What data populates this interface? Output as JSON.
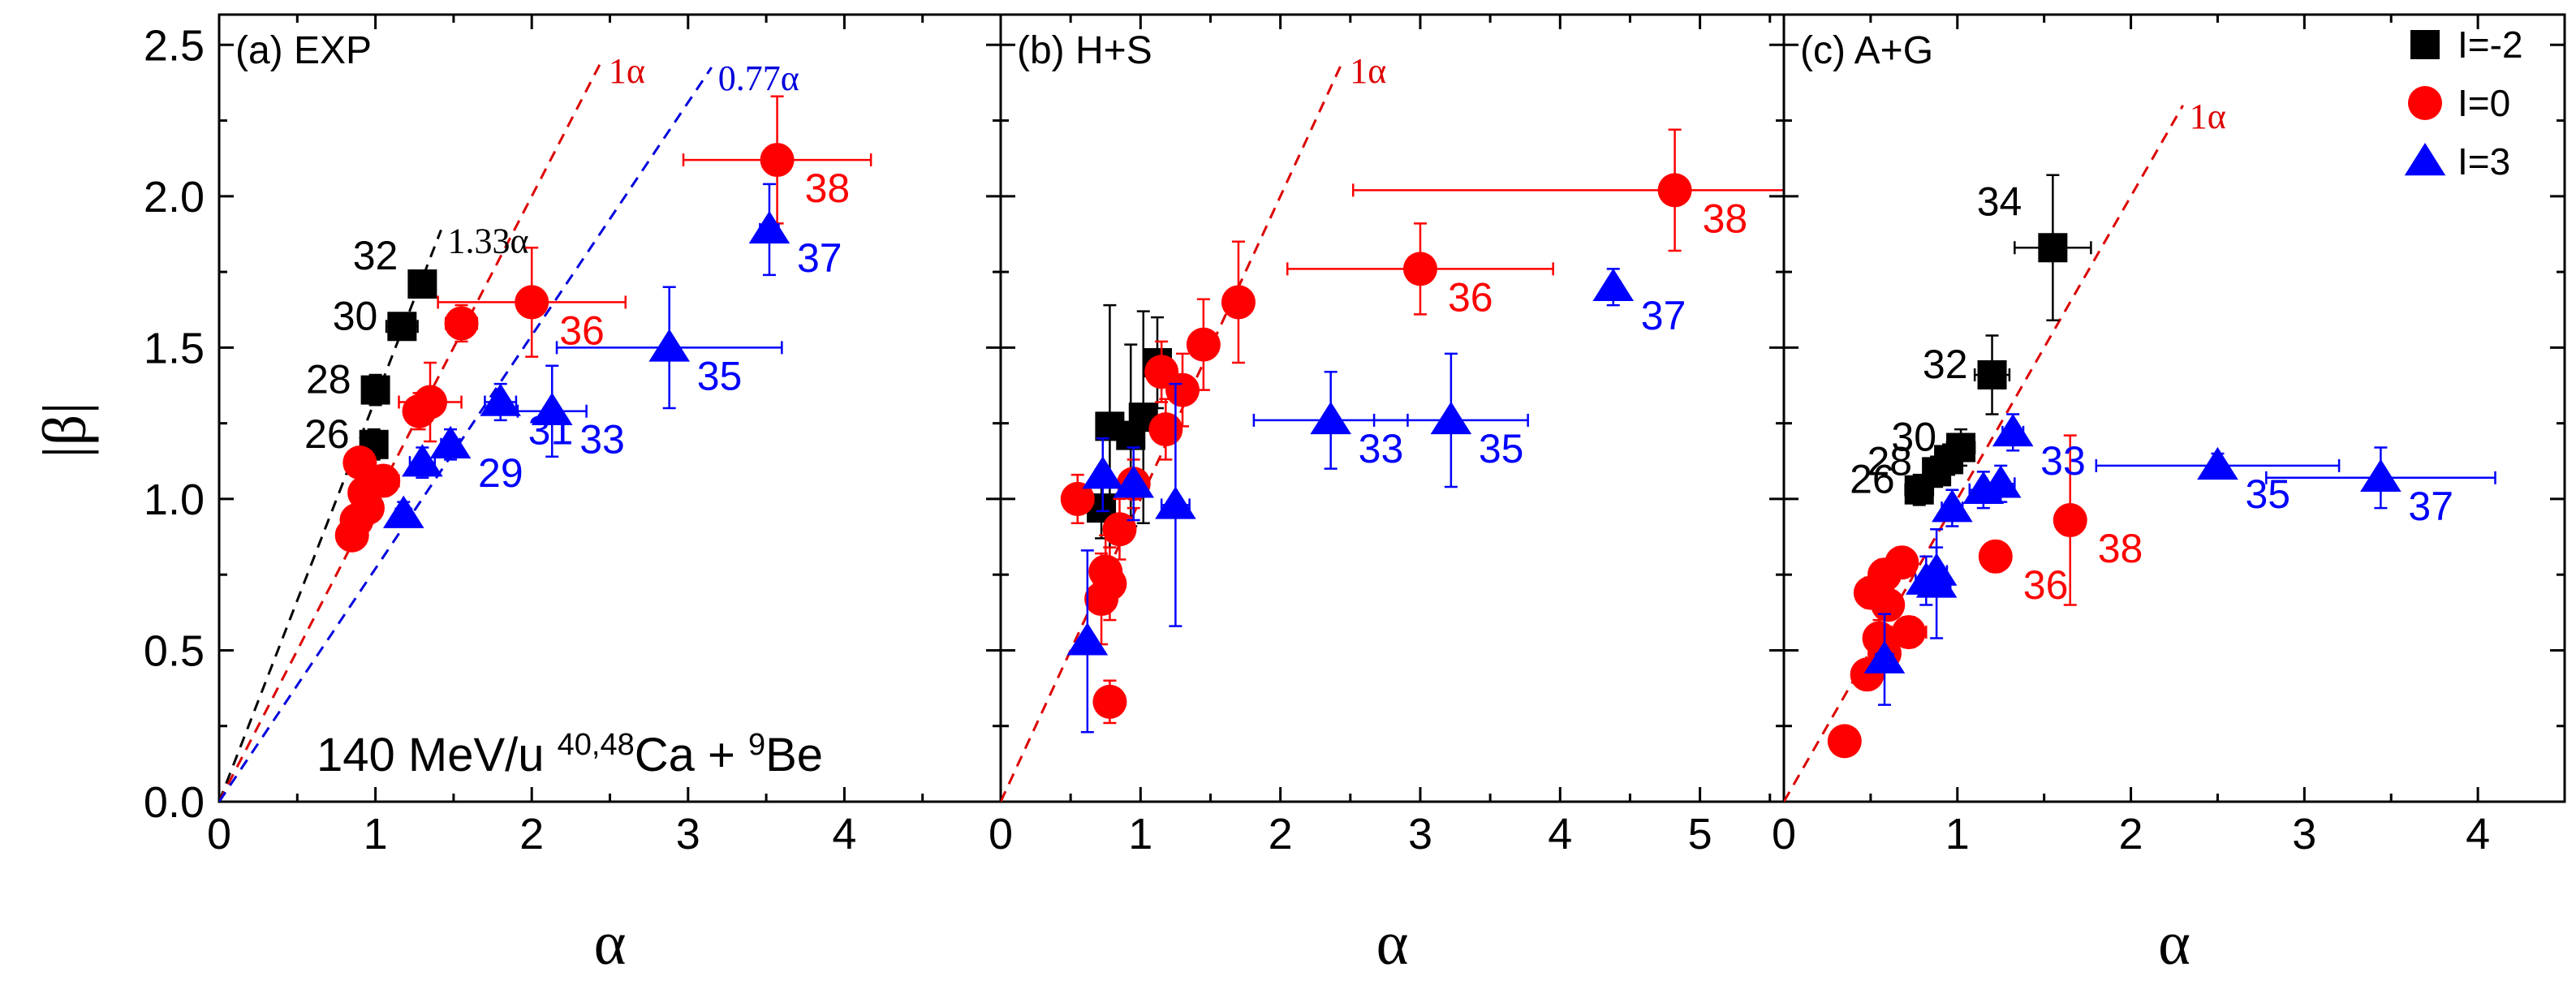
{
  "chart_data": {
    "type": "scatter",
    "xlabel": "α",
    "ylabel": "|β|",
    "ylim": [
      0,
      2.6
    ],
    "yticks": [
      "0.0",
      "0.5",
      "1.0",
      "1.5",
      "2.0",
      "2.5"
    ],
    "colors": {
      "I=-2": "#000000",
      "I=0": "#ff0000",
      "I=3": "#0000ff"
    },
    "markers": {
      "I=-2": "square",
      "I=0": "circle",
      "I=3": "triangle"
    },
    "legend": [
      {
        "label": "I=-2",
        "series": "I=-2"
      },
      {
        "label": "I=0",
        "series": "I=0"
      },
      {
        "label": "I=3",
        "series": "I=3"
      }
    ],
    "annotation": {
      "pre": "140 MeV/u ",
      "sup1": "40,48",
      "mid": "Ca + ",
      "sup2": "9",
      "post": "Be"
    },
    "panels": [
      {
        "id": "a",
        "title": "(a) EXP",
        "xlim": [
          0,
          5
        ],
        "xticks": [
          "0",
          "1",
          "2",
          "3",
          "4"
        ],
        "lines": [
          {
            "slope": 1.33,
            "color": "#000000",
            "label": "1.33α",
            "xmax": 1.42
          },
          {
            "slope": 1.0,
            "color": "#dd0000",
            "label": "1α",
            "xmax": 2.45
          },
          {
            "slope": 0.77,
            "color": "#0000dd",
            "label": "0.77α",
            "xmax": 3.15
          }
        ],
        "series": [
          {
            "name": "I=-2",
            "points": [
              {
                "x": 1.3,
                "y": 1.71,
                "xerr": 0.08,
                "yerr": 0.04,
                "label": "32"
              },
              {
                "x": 1.17,
                "y": 1.57,
                "xerr": 0.1,
                "yerr": 0.04,
                "label": "30"
              },
              {
                "x": 1.0,
                "y": 1.36,
                "xerr": 0.07,
                "yerr": 0.05,
                "label": "28"
              },
              {
                "x": 0.99,
                "y": 1.18,
                "xerr": 0.07,
                "yerr": 0.05,
                "label": "26"
              }
            ]
          },
          {
            "name": "I=0",
            "points": [
              {
                "x": 3.57,
                "y": 2.12,
                "xerr": 0.6,
                "yerr": 0.21,
                "label": "38"
              },
              {
                "x": 2.0,
                "y": 1.65,
                "xerr": 0.6,
                "yerr": 0.18,
                "label": "36"
              },
              {
                "x": 1.55,
                "y": 1.58,
                "xerr": 0.1,
                "yerr": 0.06,
                "label": ""
              },
              {
                "x": 1.35,
                "y": 1.32,
                "xerr": 0.2,
                "yerr": 0.13,
                "label": ""
              },
              {
                "x": 1.28,
                "y": 1.29,
                "xerr": 0.08,
                "yerr": 0.06,
                "label": ""
              },
              {
                "x": 0.9,
                "y": 1.12,
                "xerr": 0.05,
                "yerr": 0.04,
                "label": ""
              },
              {
                "x": 1.05,
                "y": 1.06,
                "xerr": 0.1,
                "yerr": 0.05,
                "label": ""
              },
              {
                "x": 0.93,
                "y": 1.02,
                "xerr": 0.05,
                "yerr": 0.04,
                "label": ""
              },
              {
                "x": 0.95,
                "y": 0.97,
                "xerr": 0.05,
                "yerr": 0.04,
                "label": ""
              },
              {
                "x": 0.88,
                "y": 0.93,
                "xerr": 0.05,
                "yerr": 0.04,
                "label": ""
              },
              {
                "x": 0.85,
                "y": 0.88,
                "xerr": 0.04,
                "yerr": 0.04,
                "label": ""
              }
            ]
          },
          {
            "name": "I=3",
            "points": [
              {
                "x": 3.52,
                "y": 1.89,
                "xerr": 0.06,
                "yerr": 0.15,
                "label": "37"
              },
              {
                "x": 2.88,
                "y": 1.5,
                "xerr": 0.72,
                "yerr": 0.2,
                "label": "35"
              },
              {
                "x": 2.13,
                "y": 1.29,
                "xerr": 0.22,
                "yerr": 0.15,
                "label": "33"
              },
              {
                "x": 1.8,
                "y": 1.32,
                "xerr": 0.1,
                "yerr": 0.06,
                "label": "31"
              },
              {
                "x": 1.48,
                "y": 1.18,
                "xerr": 0.06,
                "yerr": 0.05,
                "label": "29"
              },
              {
                "x": 1.3,
                "y": 1.12,
                "xerr": 0.08,
                "yerr": 0.05,
                "label": ""
              },
              {
                "x": 1.18,
                "y": 0.95,
                "xerr": 0.05,
                "yerr": 0.04,
                "label": ""
              }
            ]
          }
        ]
      },
      {
        "id": "b",
        "title": "(b) H+S",
        "xlim": [
          0,
          5.6
        ],
        "xticks": [
          "0",
          "1",
          "2",
          "3",
          "4",
          "5"
        ],
        "lines": [
          {
            "slope": 1.0,
            "color": "#dd0000",
            "label": "1α",
            "xmax": 2.45
          }
        ],
        "series": [
          {
            "name": "I=-2",
            "points": [
              {
                "x": 1.12,
                "y": 1.45,
                "xerr": 0.05,
                "yerr": 0.15,
                "label": ""
              },
              {
                "x": 1.02,
                "y": 1.27,
                "xerr": 0.06,
                "yerr": 0.35,
                "label": ""
              },
              {
                "x": 0.78,
                "y": 1.24,
                "xerr": 0.06,
                "yerr": 0.4,
                "label": ""
              },
              {
                "x": 0.93,
                "y": 1.21,
                "xerr": 0.05,
                "yerr": 0.3,
                "label": ""
              },
              {
                "x": 0.72,
                "y": 0.97,
                "xerr": 0.05,
                "yerr": 0.1,
                "label": ""
              }
            ]
          },
          {
            "name": "I=0",
            "points": [
              {
                "x": 4.82,
                "y": 2.02,
                "xerr": 2.3,
                "yerr": 0.2,
                "label": "38"
              },
              {
                "x": 3.0,
                "y": 1.76,
                "xerr": 0.95,
                "yerr": 0.15,
                "label": "36"
              },
              {
                "x": 1.7,
                "y": 1.65,
                "xerr": 0.05,
                "yerr": 0.2,
                "label": ""
              },
              {
                "x": 1.45,
                "y": 1.51,
                "xerr": 0.05,
                "yerr": 0.15,
                "label": ""
              },
              {
                "x": 1.15,
                "y": 1.42,
                "xerr": 0.05,
                "yerr": 0.1,
                "label": ""
              },
              {
                "x": 1.3,
                "y": 1.36,
                "xerr": 0.05,
                "yerr": 0.12,
                "label": ""
              },
              {
                "x": 1.18,
                "y": 1.23,
                "xerr": 0.05,
                "yerr": 0.1,
                "label": ""
              },
              {
                "x": 0.95,
                "y": 1.05,
                "xerr": 0.05,
                "yerr": 0.08,
                "label": ""
              },
              {
                "x": 0.55,
                "y": 1.0,
                "xerr": 0.06,
                "yerr": 0.08,
                "label": ""
              },
              {
                "x": 0.85,
                "y": 0.9,
                "xerr": 0.05,
                "yerr": 0.1,
                "label": ""
              },
              {
                "x": 0.78,
                "y": 0.72,
                "xerr": 0.05,
                "yerr": 0.12,
                "label": ""
              },
              {
                "x": 0.75,
                "y": 0.76,
                "xerr": 0.05,
                "yerr": 0.12,
                "label": ""
              },
              {
                "x": 0.72,
                "y": 0.67,
                "xerr": 0.05,
                "yerr": 0.15,
                "label": ""
              },
              {
                "x": 0.78,
                "y": 0.33,
                "xerr": 0.04,
                "yerr": 0.07,
                "label": ""
              }
            ]
          },
          {
            "name": "I=3",
            "points": [
              {
                "x": 4.38,
                "y": 1.7,
                "xerr": 0.05,
                "yerr": 0.06,
                "label": "37"
              },
              {
                "x": 3.22,
                "y": 1.26,
                "xerr": 0.55,
                "yerr": 0.22,
                "label": "35"
              },
              {
                "x": 2.36,
                "y": 1.26,
                "xerr": 0.55,
                "yerr": 0.16,
                "label": "33"
              },
              {
                "x": 1.25,
                "y": 0.98,
                "xerr": 0.1,
                "yerr": 0.4,
                "label": ""
              },
              {
                "x": 0.73,
                "y": 1.08,
                "xerr": 0.05,
                "yerr": 0.12,
                "label": ""
              },
              {
                "x": 0.95,
                "y": 1.05,
                "xerr": 0.05,
                "yerr": 0.12,
                "label": ""
              },
              {
                "x": 0.62,
                "y": 0.53,
                "xerr": 0.04,
                "yerr": 0.3,
                "label": ""
              }
            ]
          }
        ]
      },
      {
        "id": "c",
        "title": "(c) A+G",
        "xlim": [
          0,
          4.5
        ],
        "xticks": [
          "0",
          "1",
          "2",
          "3",
          "4"
        ],
        "lines": [
          {
            "slope": 1.0,
            "color": "#dd0000",
            "label": "1α",
            "xmax": 2.3
          }
        ],
        "series": [
          {
            "name": "I=-2",
            "points": [
              {
                "x": 1.55,
                "y": 1.83,
                "xerr": 0.22,
                "yerr": 0.24,
                "label": "34"
              },
              {
                "x": 1.2,
                "y": 1.41,
                "xerr": 0.1,
                "yerr": 0.13,
                "label": "32"
              },
              {
                "x": 1.02,
                "y": 1.17,
                "xerr": 0.08,
                "yerr": 0.06,
                "label": "30"
              },
              {
                "x": 0.95,
                "y": 1.13,
                "xerr": 0.06,
                "yerr": 0.05,
                "label": ""
              },
              {
                "x": 0.88,
                "y": 1.09,
                "xerr": 0.06,
                "yerr": 0.05,
                "label": "28"
              },
              {
                "x": 0.78,
                "y": 1.03,
                "xerr": 0.08,
                "yerr": 0.05,
                "label": "26"
              }
            ]
          },
          {
            "name": "I=0",
            "points": [
              {
                "x": 1.65,
                "y": 0.93,
                "xerr": 0.06,
                "yerr": 0.28,
                "label": "38"
              },
              {
                "x": 1.22,
                "y": 0.81,
                "xerr": 0.08,
                "yerr": 0.05,
                "label": "36"
              },
              {
                "x": 0.68,
                "y": 0.79,
                "xerr": 0.08,
                "yerr": 0.05,
                "label": ""
              },
              {
                "x": 0.58,
                "y": 0.75,
                "xerr": 0.06,
                "yerr": 0.05,
                "label": ""
              },
              {
                "x": 0.5,
                "y": 0.69,
                "xerr": 0.06,
                "yerr": 0.05,
                "label": ""
              },
              {
                "x": 0.6,
                "y": 0.65,
                "xerr": 0.05,
                "yerr": 0.05,
                "label": ""
              },
              {
                "x": 0.72,
                "y": 0.56,
                "xerr": 0.1,
                "yerr": 0.05,
                "label": ""
              },
              {
                "x": 0.55,
                "y": 0.54,
                "xerr": 0.05,
                "yerr": 0.06,
                "label": ""
              },
              {
                "x": 0.58,
                "y": 0.49,
                "xerr": 0.05,
                "yerr": 0.05,
                "label": ""
              },
              {
                "x": 0.48,
                "y": 0.42,
                "xerr": 0.05,
                "yerr": 0.04,
                "label": ""
              },
              {
                "x": 0.35,
                "y": 0.2,
                "xerr": 0.04,
                "yerr": 0.04,
                "label": ""
              }
            ]
          },
          {
            "name": "I=3",
            "points": [
              {
                "x": 3.44,
                "y": 1.07,
                "xerr": 0.66,
                "yerr": 0.1,
                "label": "37"
              },
              {
                "x": 2.5,
                "y": 1.11,
                "xerr": 0.7,
                "yerr": 0.04,
                "label": "35"
              },
              {
                "x": 1.32,
                "y": 1.22,
                "xerr": 0.06,
                "yerr": 0.06,
                "label": "33"
              },
              {
                "x": 1.25,
                "y": 1.05,
                "xerr": 0.08,
                "yerr": 0.06,
                "label": ""
              },
              {
                "x": 1.15,
                "y": 1.03,
                "xerr": 0.08,
                "yerr": 0.06,
                "label": ""
              },
              {
                "x": 0.97,
                "y": 0.97,
                "xerr": 0.06,
                "yerr": 0.06,
                "label": ""
              },
              {
                "x": 0.88,
                "y": 0.76,
                "xerr": 0.06,
                "yerr": 0.08,
                "label": ""
              },
              {
                "x": 0.82,
                "y": 0.73,
                "xerr": 0.06,
                "yerr": 0.08,
                "label": ""
              },
              {
                "x": 0.88,
                "y": 0.72,
                "xerr": 0.08,
                "yerr": 0.18,
                "label": ""
              },
              {
                "x": 0.58,
                "y": 0.47,
                "xerr": 0.05,
                "yerr": 0.15,
                "label": ""
              }
            ]
          }
        ]
      }
    ]
  }
}
